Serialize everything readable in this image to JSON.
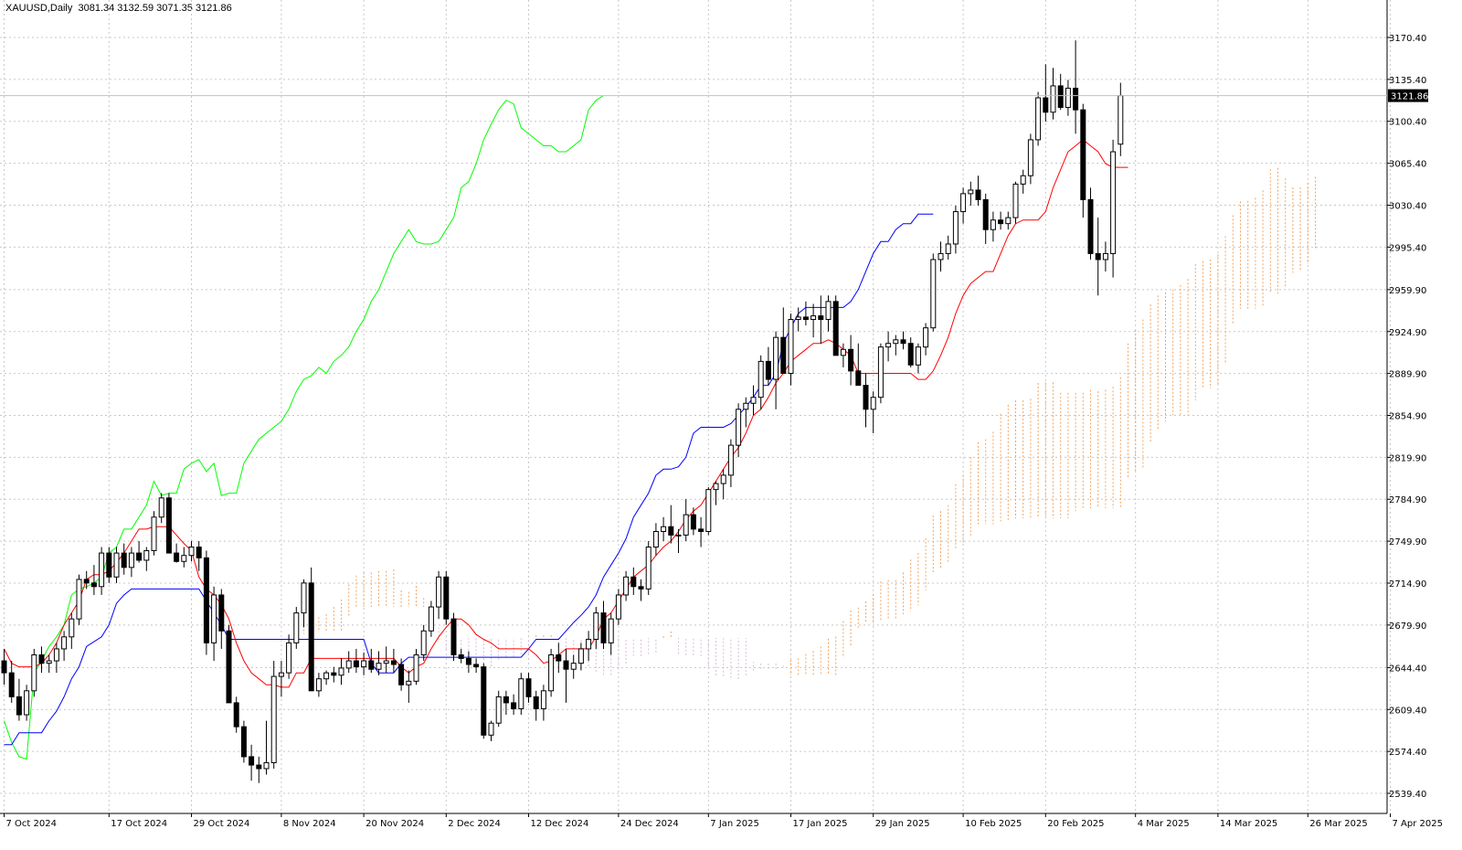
{
  "header": {
    "symbol_label": "XAUUSD,Daily",
    "ohlc_label": "3081.34 3132.59 3071.35 3121.86"
  },
  "current_price_label": "3121.86",
  "colors": {
    "background": "#ffffff",
    "grid": "#c8c8c8",
    "candle_bull_body": "#ffffff",
    "candle_bear_body": "#000000",
    "candle_outline": "#000000",
    "tenkan_sen": "#ff0000",
    "kijun_sen": "#0000ff",
    "chikou_span": "#00ff00",
    "kumo_cloud": "#f4a460",
    "kumo_cloud_alt": "#d8bfd8"
  },
  "chart_data": {
    "type": "candlestick",
    "symbol": "XAUUSD",
    "timeframe": "Daily",
    "indicator": "Ichimoku Kinko Hyo",
    "ylim": [
      2525,
      3195
    ],
    "x_range": [
      0,
      190
    ],
    "grid": true,
    "y_ticks": [
      "3170.40",
      "3135.40",
      "3100.40",
      "3065.40",
      "3030.40",
      "2995.40",
      "2959.90",
      "2924.90",
      "2889.90",
      "2854.90",
      "2819.90",
      "2784.90",
      "2749.90",
      "2714.90",
      "2679.90",
      "2644.40",
      "2609.40",
      "2574.40",
      "2539.40"
    ],
    "y_tick_values": [
      3170.4,
      3135.4,
      3100.4,
      3065.4,
      3030.4,
      2995.4,
      2959.9,
      2924.9,
      2889.9,
      2854.9,
      2819.9,
      2784.9,
      2749.9,
      2714.9,
      2679.9,
      2644.4,
      2609.4,
      2574.4,
      2539.4
    ],
    "x_ticks": [
      {
        "i": 0,
        "label": "7 Oct 2024"
      },
      {
        "i": 14,
        "label": "17 Oct 2024"
      },
      {
        "i": 25,
        "label": "29 Oct 2024"
      },
      {
        "i": 37,
        "label": "8 Nov 2024"
      },
      {
        "i": 48,
        "label": "20 Nov 2024"
      },
      {
        "i": 59,
        "label": "2 Dec 2024"
      },
      {
        "i": 70,
        "label": "12 Dec 2024"
      },
      {
        "i": 82,
        "label": "24 Dec 2024"
      },
      {
        "i": 94,
        "label": "7 Jan 2025"
      },
      {
        "i": 105,
        "label": "17 Jan 2025"
      },
      {
        "i": 116,
        "label": "29 Jan 2025"
      },
      {
        "i": 128,
        "label": "10 Feb 2025"
      },
      {
        "i": 139,
        "label": "20 Feb 2025"
      },
      {
        "i": 151,
        "label": "4 Mar 2025"
      },
      {
        "i": 162,
        "label": "14 Mar 2025"
      },
      {
        "i": 174,
        "label": "26 Mar 2025"
      },
      {
        "i": 185,
        "label": "7 Apr 2025"
      }
    ],
    "candles": [
      [
        2650,
        2660,
        2630,
        2640
      ],
      [
        2640,
        2650,
        2615,
        2620
      ],
      [
        2620,
        2635,
        2600,
        2605
      ],
      [
        2605,
        2630,
        2600,
        2625
      ],
      [
        2625,
        2660,
        2620,
        2655
      ],
      [
        2655,
        2662,
        2640,
        2648
      ],
      [
        2648,
        2655,
        2640,
        2650
      ],
      [
        2650,
        2665,
        2640,
        2660
      ],
      [
        2660,
        2675,
        2650,
        2670
      ],
      [
        2670,
        2690,
        2660,
        2685
      ],
      [
        2685,
        2722,
        2680,
        2718
      ],
      [
        2718,
        2725,
        2710,
        2715
      ],
      [
        2715,
        2730,
        2705,
        2712
      ],
      [
        2712,
        2745,
        2705,
        2740
      ],
      [
        2740,
        2745,
        2715,
        2720
      ],
      [
        2720,
        2745,
        2715,
        2740
      ],
      [
        2740,
        2748,
        2722,
        2728
      ],
      [
        2728,
        2745,
        2720,
        2740
      ],
      [
        2740,
        2750,
        2732,
        2734
      ],
      [
        2734,
        2745,
        2725,
        2742
      ],
      [
        2742,
        2775,
        2738,
        2770
      ],
      [
        2770,
        2790,
        2765,
        2786
      ],
      [
        2786,
        2790,
        2740,
        2740
      ],
      [
        2740,
        2748,
        2732,
        2733
      ],
      [
        2733,
        2745,
        2728,
        2738
      ],
      [
        2738,
        2750,
        2733,
        2745
      ],
      [
        2745,
        2750,
        2725,
        2736
      ],
      [
        2736,
        2742,
        2655,
        2665
      ],
      [
        2665,
        2712,
        2650,
        2705
      ],
      [
        2705,
        2710,
        2660,
        2675
      ],
      [
        2675,
        2680,
        2615,
        2615
      ],
      [
        2615,
        2620,
        2590,
        2595
      ],
      [
        2595,
        2600,
        2565,
        2570
      ],
      [
        2570,
        2580,
        2550,
        2563
      ],
      [
        2563,
        2570,
        2548,
        2560
      ],
      [
        2560,
        2600,
        2555,
        2565
      ],
      [
        2565,
        2650,
        2560,
        2637
      ],
      [
        2637,
        2650,
        2620,
        2640
      ],
      [
        2640,
        2672,
        2635,
        2665
      ],
      [
        2665,
        2695,
        2660,
        2690
      ],
      [
        2690,
        2718,
        2678,
        2715
      ],
      [
        2715,
        2728,
        2625,
        2625
      ],
      [
        2625,
        2640,
        2620,
        2635
      ],
      [
        2635,
        2642,
        2630,
        2640
      ],
      [
        2640,
        2645,
        2632,
        2638
      ],
      [
        2638,
        2652,
        2630,
        2644
      ],
      [
        2644,
        2658,
        2640,
        2650
      ],
      [
        2650,
        2660,
        2640,
        2645
      ],
      [
        2645,
        2657,
        2638,
        2650
      ],
      [
        2650,
        2660,
        2640,
        2643
      ],
      [
        2643,
        2658,
        2638,
        2648
      ],
      [
        2648,
        2662,
        2640,
        2650
      ],
      [
        2650,
        2660,
        2640,
        2647
      ],
      [
        2647,
        2652,
        2625,
        2630
      ],
      [
        2630,
        2642,
        2615,
        2633
      ],
      [
        2633,
        2660,
        2630,
        2655
      ],
      [
        2655,
        2680,
        2650,
        2675
      ],
      [
        2675,
        2700,
        2670,
        2695
      ],
      [
        2695,
        2725,
        2685,
        2720
      ],
      [
        2720,
        2725,
        2680,
        2685
      ],
      [
        2685,
        2690,
        2650,
        2655
      ],
      [
        2655,
        2660,
        2648,
        2652
      ],
      [
        2652,
        2658,
        2640,
        2647
      ],
      [
        2647,
        2652,
        2640,
        2645
      ],
      [
        2645,
        2648,
        2585,
        2588
      ],
      [
        2588,
        2600,
        2583,
        2598
      ],
      [
        2598,
        2625,
        2595,
        2620
      ],
      [
        2620,
        2625,
        2605,
        2615
      ],
      [
        2615,
        2622,
        2605,
        2610
      ],
      [
        2610,
        2640,
        2605,
        2635
      ],
      [
        2635,
        2640,
        2615,
        2620
      ],
      [
        2620,
        2625,
        2600,
        2610
      ],
      [
        2610,
        2630,
        2600,
        2625
      ],
      [
        2625,
        2660,
        2620,
        2655
      ],
      [
        2655,
        2665,
        2640,
        2650
      ],
      [
        2650,
        2660,
        2615,
        2643
      ],
      [
        2643,
        2655,
        2635,
        2648
      ],
      [
        2648,
        2665,
        2642,
        2660
      ],
      [
        2660,
        2675,
        2650,
        2668
      ],
      [
        2668,
        2695,
        2660,
        2690
      ],
      [
        2690,
        2700,
        2660,
        2665
      ],
      [
        2665,
        2690,
        2655,
        2685
      ],
      [
        2685,
        2710,
        2680,
        2705
      ],
      [
        2705,
        2725,
        2700,
        2720
      ],
      [
        2720,
        2728,
        2705,
        2712
      ],
      [
        2712,
        2718,
        2700,
        2710
      ],
      [
        2710,
        2750,
        2705,
        2745
      ],
      [
        2745,
        2765,
        2738,
        2758
      ],
      [
        2758,
        2770,
        2750,
        2762
      ],
      [
        2762,
        2780,
        2748,
        2755
      ],
      [
        2755,
        2760,
        2740,
        2755
      ],
      [
        2755,
        2785,
        2750,
        2772
      ],
      [
        2772,
        2778,
        2755,
        2760
      ],
      [
        2760,
        2770,
        2745,
        2758
      ],
      [
        2758,
        2795,
        2755,
        2793
      ],
      [
        2793,
        2800,
        2780,
        2798
      ],
      [
        2798,
        2810,
        2785,
        2805
      ],
      [
        2805,
        2835,
        2795,
        2830
      ],
      [
        2830,
        2865,
        2820,
        2860
      ],
      [
        2860,
        2870,
        2845,
        2865
      ],
      [
        2865,
        2880,
        2855,
        2870
      ],
      [
        2870,
        2905,
        2860,
        2900
      ],
      [
        2900,
        2912,
        2880,
        2885
      ],
      [
        2885,
        2925,
        2860,
        2920
      ],
      [
        2920,
        2945,
        2890,
        2890
      ],
      [
        2890,
        2940,
        2880,
        2935
      ],
      [
        2935,
        2945,
        2925,
        2937
      ],
      [
        2937,
        2950,
        2930,
        2935
      ],
      [
        2935,
        2948,
        2920,
        2938
      ],
      [
        2938,
        2955,
        2915,
        2935
      ],
      [
        2935,
        2955,
        2925,
        2950
      ],
      [
        2950,
        2955,
        2910,
        2905
      ],
      [
        2905,
        2915,
        2895,
        2910
      ],
      [
        2910,
        2922,
        2880,
        2892
      ],
      [
        2892,
        2915,
        2880,
        2880
      ],
      [
        2880,
        2890,
        2845,
        2860
      ],
      [
        2860,
        2875,
        2840,
        2870
      ],
      [
        2870,
        2915,
        2865,
        2912
      ],
      [
        2912,
        2925,
        2900,
        2915
      ],
      [
        2915,
        2922,
        2905,
        2918
      ],
      [
        2918,
        2925,
        2910,
        2915
      ],
      [
        2915,
        2920,
        2895,
        2897
      ],
      [
        2897,
        2915,
        2890,
        2912
      ],
      [
        2912,
        2932,
        2905,
        2928
      ],
      [
        2928,
        2990,
        2925,
        2985
      ],
      [
        2985,
        3000,
        2975,
        2990
      ],
      [
        2990,
        3005,
        2985,
        2998
      ],
      [
        2998,
        3030,
        2990,
        3025
      ],
      [
        3025,
        3045,
        3015,
        3040
      ],
      [
        3040,
        3050,
        3030,
        3043
      ],
      [
        3043,
        3055,
        3030,
        3035
      ],
      [
        3035,
        3040,
        2998,
        3010
      ],
      [
        3010,
        3025,
        3000,
        3018
      ],
      [
        3018,
        3025,
        3010,
        3015
      ],
      [
        3015,
        3025,
        3010,
        3020
      ],
      [
        3020,
        3050,
        3015,
        3048
      ],
      [
        3048,
        3060,
        3040,
        3055
      ],
      [
        3055,
        3090,
        3048,
        3085
      ],
      [
        3085,
        3125,
        3080,
        3120
      ],
      [
        3120,
        3148,
        3100,
        3108
      ],
      [
        3108,
        3145,
        3102,
        3130
      ],
      [
        3130,
        3140,
        3110,
        3112
      ],
      [
        3112,
        3135,
        3105,
        3128
      ],
      [
        3128,
        3168,
        3090,
        3110
      ],
      [
        3110,
        3115,
        3020,
        3035
      ],
      [
        3035,
        3045,
        2985,
        2990
      ],
      [
        2990,
        3020,
        2955,
        2985
      ],
      [
        2985,
        3000,
        2975,
        2990
      ],
      [
        2990,
        3085,
        2970,
        3075
      ],
      [
        3081.34,
        3132.59,
        3071.35,
        3121.86
      ]
    ],
    "tenkan_sen": [
      2660,
      2648,
      2645,
      2645,
      2645,
      2648,
      2655,
      2665,
      2680,
      2690,
      2700,
      2718,
      2722,
      2722,
      2725,
      2732,
      2740,
      2750,
      2760,
      2760,
      2762,
      2762,
      2762,
      2755,
      2748,
      2742,
      2720,
      2710,
      2705,
      2697,
      2685,
      2665,
      2650,
      2640,
      2635,
      2630,
      2630,
      2628,
      2628,
      2640,
      2640,
      2652,
      2652,
      2652,
      2652,
      2652,
      2652,
      2652,
      2652,
      2652,
      2652,
      2652,
      2652,
      2645,
      2640,
      2645,
      2648,
      2660,
      2670,
      2678,
      2685,
      2685,
      2680,
      2672,
      2668,
      2665,
      2660,
      2660,
      2660,
      2660,
      2660,
      2655,
      2648,
      2650,
      2655,
      2660,
      2660,
      2660,
      2660,
      2670,
      2685,
      2690,
      2700,
      2710,
      2720,
      2725,
      2730,
      2738,
      2745,
      2750,
      2758,
      2768,
      2775,
      2780,
      2790,
      2800,
      2810,
      2820,
      2828,
      2840,
      2855,
      2860,
      2870,
      2882,
      2890,
      2900,
      2905,
      2910,
      2915,
      2915,
      2918,
      2915,
      2910,
      2905,
      2890,
      2890,
      2890,
      2890,
      2890,
      2890,
      2890,
      2890,
      2885,
      2885,
      2892,
      2905,
      2920,
      2940,
      2955,
      2965,
      2970,
      2975,
      2975,
      2990,
      3005,
      3015,
      3018,
      3018,
      3018,
      3025,
      3045,
      3060,
      3075,
      3080,
      3085,
      3080,
      3075,
      3065,
      3062,
      3062,
      3062
    ],
    "kijun_sen": [
      2580,
      2580,
      2590,
      2590,
      2590,
      2590,
      2600,
      2608,
      2620,
      2635,
      2645,
      2662,
      2666,
      2670,
      2680,
      2698,
      2705,
      2710,
      2710,
      2710,
      2710,
      2710,
      2710,
      2710,
      2710,
      2710,
      2710,
      2700,
      2690,
      2680,
      2668,
      2668,
      2668,
      2668,
      2668,
      2668,
      2668,
      2668,
      2668,
      2668,
      2668,
      2668,
      2668,
      2668,
      2668,
      2668,
      2668,
      2668,
      2668,
      2648,
      2640,
      2640,
      2640,
      2648,
      2653,
      2653,
      2653,
      2653,
      2653,
      2653,
      2653,
      2653,
      2653,
      2653,
      2653,
      2653,
      2653,
      2653,
      2653,
      2653,
      2660,
      2668,
      2668,
      2668,
      2668,
      2675,
      2682,
      2688,
      2695,
      2705,
      2720,
      2730,
      2740,
      2752,
      2770,
      2780,
      2790,
      2805,
      2810,
      2810,
      2812,
      2820,
      2840,
      2845,
      2845,
      2845,
      2845,
      2848,
      2855,
      2862,
      2870,
      2880,
      2880,
      2890,
      2915,
      2928,
      2940,
      2945,
      2945,
      2945,
      2945,
      2945,
      2945,
      2950,
      2960,
      2975,
      2990,
      3000,
      3000,
      3010,
      3015,
      3015,
      3023,
      3023,
      3023
    ],
    "chikou_span": [
      2600,
      2582,
      2570,
      2568,
      2640,
      2650,
      2662,
      2670,
      2680,
      2705,
      2710,
      2712,
      2715,
      2720,
      2740,
      2745,
      2760,
      2760,
      2770,
      2780,
      2800,
      2788,
      2790,
      2790,
      2810,
      2815,
      2818,
      2808,
      2815,
      2788,
      2790,
      2790,
      2815,
      2825,
      2835,
      2840,
      2845,
      2850,
      2860,
      2875,
      2885,
      2888,
      2895,
      2890,
      2900,
      2905,
      2912,
      2925,
      2935,
      2950,
      2960,
      2975,
      2990,
      3000,
      3010,
      3000,
      2998,
      2998,
      3000,
      3010,
      3020,
      3045,
      3050,
      3065,
      3085,
      3098,
      3110,
      3118,
      3115,
      3095,
      3090,
      3085,
      3080,
      3080,
      3075,
      3075,
      3080,
      3085,
      3110,
      3118,
      3122
    ]
  }
}
